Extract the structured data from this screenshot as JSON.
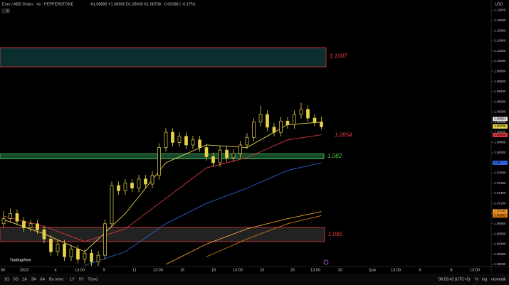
{
  "header": {
    "symbol": "Euro / ABD Doları · 4s · PEPPERSTONE",
    "ohlc": "A1.08896 Y1.08900 D1.08656 K1.08708 −0.00188 (−0.17%)",
    "indicators": "2",
    "currency": "USD"
  },
  "watermark": "TradingView",
  "time_axis": [
    "00",
    "2023",
    "4",
    "13:00",
    "9",
    "11",
    "13:00",
    "16",
    "18",
    "13:00",
    "23",
    "25",
    "13:00",
    "30",
    "Şub",
    "13:00",
    "6",
    "8",
    "13:00"
  ],
  "toolbar": {
    "ranges": [
      "1G",
      "5G",
      "1A",
      "3A",
      "6A",
      "Bu sene",
      "1Y",
      "5Y",
      "Tümü"
    ],
    "clock": "08:53:42 (UTC+3)",
    "percent": "%",
    "log": "log",
    "auto": "otomatik"
  },
  "chart": {
    "type": "candlestick",
    "candle_color": "#e6d34a",
    "ylim": [
      1.05958,
      1.11203
    ],
    "yticks": [
      {
        "value": 1.06,
        "label": "1.06000"
      },
      {
        "value": 1.062,
        "label": "1.06200"
      },
      {
        "value": 1.064,
        "label": "1.06400"
      },
      {
        "value": 1.066,
        "label": "1.06600"
      },
      {
        "value": 1.068,
        "label": "1.06800"
      },
      {
        "value": 1.07,
        "label": "1.07000"
      },
      {
        "value": 1.072,
        "label": "1.07200"
      },
      {
        "value": 1.074,
        "label": "1.07400"
      },
      {
        "value": 1.076,
        "label": "1.07600"
      },
      {
        "value": 1.078,
        "label": "1.07800"
      },
      {
        "value": 1.08,
        "label": "1.08000"
      },
      {
        "value": 1.082,
        "label": "1.08200"
      },
      {
        "value": 1.084,
        "label": "1.08400"
      },
      {
        "value": 1.086,
        "label": "1.08600"
      },
      {
        "value": 1.088,
        "label": "1.08800"
      },
      {
        "value": 1.09,
        "label": "1.09000"
      },
      {
        "value": 1.092,
        "label": "1.09200"
      },
      {
        "value": 1.094,
        "label": "1.09400"
      },
      {
        "value": 1.096,
        "label": "1.09600"
      },
      {
        "value": 1.098,
        "label": "1.09800"
      },
      {
        "value": 1.1,
        "label": "1.10000"
      },
      {
        "value": 1.102,
        "label": "1.10200"
      },
      {
        "value": 1.104,
        "label": "1.10400"
      },
      {
        "value": 1.106,
        "label": "1.10600"
      },
      {
        "value": 1.108,
        "label": "1.10800"
      },
      {
        "value": 1.11,
        "label": "1.11000"
      }
    ],
    "candles": [
      [
        1.068,
        1.0705,
        1.0672,
        1.069
      ],
      [
        1.069,
        1.071,
        1.0682,
        1.07
      ],
      [
        1.07,
        1.0708,
        1.0678,
        1.0685
      ],
      [
        1.0685,
        1.0693,
        1.0664,
        1.0672
      ],
      [
        1.0672,
        1.0688,
        1.0665,
        1.068
      ],
      [
        1.068,
        1.0688,
        1.066,
        1.0668
      ],
      [
        1.0668,
        1.0676,
        1.0642,
        1.065
      ],
      [
        1.065,
        1.0658,
        1.0617,
        1.0625
      ],
      [
        1.0625,
        1.0648,
        1.0617,
        1.064
      ],
      [
        1.064,
        1.0648,
        1.0607,
        1.0615
      ],
      [
        1.0615,
        1.0638,
        1.0607,
        1.063
      ],
      [
        1.063,
        1.0638,
        1.0602,
        1.061
      ],
      [
        1.061,
        1.063,
        1.0602,
        1.0622
      ],
      [
        1.0622,
        1.063,
        1.0597,
        1.0605
      ],
      [
        1.0605,
        1.0626,
        1.0597,
        1.0618
      ],
      [
        1.0618,
        1.0688,
        1.061,
        1.068
      ],
      [
        1.068,
        1.0763,
        1.0672,
        1.0755
      ],
      [
        1.0755,
        1.0763,
        1.0737,
        1.0745
      ],
      [
        1.0745,
        1.0768,
        1.0737,
        1.076
      ],
      [
        1.076,
        1.0768,
        1.0742,
        1.075
      ],
      [
        1.075,
        1.0776,
        1.0742,
        1.0768
      ],
      [
        1.0768,
        1.0776,
        1.075,
        1.0758
      ],
      [
        1.0758,
        1.0783,
        1.075,
        1.0775
      ],
      [
        1.0775,
        1.0838,
        1.0767,
        1.083
      ],
      [
        1.083,
        1.0868,
        1.0822,
        1.086
      ],
      [
        1.086,
        1.0868,
        1.0832,
        1.084
      ],
      [
        1.084,
        1.086,
        1.0832,
        1.0852
      ],
      [
        1.0852,
        1.086,
        1.0827,
        1.0835
      ],
      [
        1.0835,
        1.0853,
        1.0827,
        1.0845
      ],
      [
        1.0845,
        1.0853,
        1.0822,
        1.083
      ],
      [
        1.083,
        1.0838,
        1.0804,
        1.0812
      ],
      [
        1.0812,
        1.082,
        1.0792,
        1.08
      ],
      [
        1.08,
        1.0833,
        1.0792,
        1.0825
      ],
      [
        1.0825,
        1.0833,
        1.0802,
        1.081
      ],
      [
        1.081,
        1.0826,
        1.0802,
        1.0818
      ],
      [
        1.0818,
        1.0843,
        1.081,
        1.0835
      ],
      [
        1.0835,
        1.0858,
        1.0827,
        1.085
      ],
      [
        1.085,
        1.0888,
        1.0842,
        1.088
      ],
      [
        1.088,
        1.0912,
        1.0872,
        1.0895
      ],
      [
        1.0895,
        1.0903,
        1.0862,
        1.087
      ],
      [
        1.087,
        1.0878,
        1.0852,
        1.086
      ],
      [
        1.086,
        1.089,
        1.0852,
        1.0882
      ],
      [
        1.0882,
        1.089,
        1.0867,
        1.0875
      ],
      [
        1.0875,
        1.0903,
        1.0867,
        1.0895
      ],
      [
        1.0895,
        1.0918,
        1.0887,
        1.0905
      ],
      [
        1.0905,
        1.0913,
        1.088,
        1.0888
      ],
      [
        1.0888,
        1.0896,
        1.0872,
        1.088
      ],
      [
        1.088,
        1.089,
        1.0866,
        1.0871
      ]
    ],
    "ma_x": [
      1,
      7,
      13,
      19,
      25,
      31,
      37,
      43,
      48
    ],
    "ma": [
      {
        "color": "#e6d34a",
        "values": [
          1.0688,
          1.066,
          1.0625,
          1.07,
          1.08,
          1.0835,
          1.083,
          1.0875,
          1.088
        ]
      },
      {
        "color": "#e0383e",
        "values": [
          1.0695,
          1.0675,
          1.0645,
          1.067,
          1.073,
          1.079,
          1.081,
          1.0845,
          1.0855
        ]
      },
      {
        "color": "#2f5fd6",
        "values": [
          null,
          null,
          1.0598,
          1.0625,
          1.068,
          1.072,
          1.075,
          1.0785,
          1.08
        ]
      },
      {
        "color": "#f0a030",
        "values": [
          null,
          null,
          null,
          null,
          1.06,
          1.064,
          1.067,
          1.069,
          1.0704
        ]
      },
      {
        "color": "#d97a10",
        "values": [
          null,
          null,
          null,
          null,
          null,
          1.0615,
          1.065,
          1.068,
          1.0696
        ]
      }
    ],
    "zones": [
      {
        "label": "1.1007",
        "top": 1.10266,
        "bottom": 1.09888,
        "stroke": "#e0383e",
        "fill": "#0e3a3a",
        "label_color": "#e0383e"
      },
      {
        "label": "1.082",
        "top": 1.08175,
        "bottom": 1.08077,
        "stroke": "#4fd24f",
        "fill": "#1c5a3a",
        "label_color": "#4fd24f"
      },
      {
        "label": "1.065",
        "top": 1.06727,
        "bottom": 1.06448,
        "stroke": "#e0383e",
        "fill": "#2a2a2a",
        "label_color": "#e0383e"
      }
    ],
    "line_note": {
      "label": "1.0854",
      "value": 1.0854,
      "color": "#e0383e"
    },
    "price_tags": [
      {
        "value": 1.08861,
        "color": "#dddddd"
      },
      {
        "value": 1.08728,
        "color": "#e6d34a"
      },
      {
        "value": 1.08546,
        "color": "#e0383e"
      },
      {
        "value": 1.08,
        "color": "#2f5fd6"
      },
      {
        "value": 1.07043,
        "color": "#f0a030"
      },
      {
        "value": 1.06962,
        "color": "#d97a10"
      }
    ]
  }
}
